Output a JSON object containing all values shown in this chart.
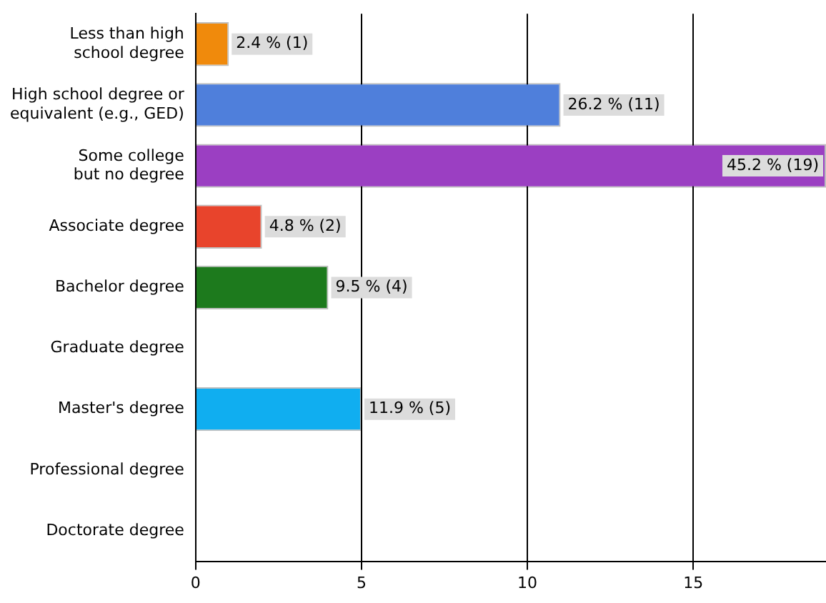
{
  "chart_data": {
    "type": "bar",
    "orientation": "horizontal",
    "categories": [
      "Less than high\nschool degree",
      "High school degree or\nequivalent (e.g., GED)",
      "Some college\nbut no degree",
      "Associate degree",
      "Bachelor degree",
      "Graduate degree",
      "Master's degree",
      "Professional degree",
      "Doctorate degree"
    ],
    "values": [
      1,
      11,
      19,
      2,
      4,
      0,
      5,
      0,
      0
    ],
    "colors": [
      "#f08a0c",
      "#4f7fdb",
      "#9b3fc2",
      "#e8442c",
      "#1d7a1d",
      null,
      "#10aef0",
      null,
      null
    ],
    "value_labels": [
      "2.4 % (1)",
      "26.2 % (11)",
      "45.2 % (19)",
      "4.8 % (2)",
      "9.5 % (4)",
      null,
      "11.9 % (5)",
      null,
      null
    ],
    "xlim": [
      0,
      19
    ],
    "xticks": [
      0,
      5,
      10,
      15
    ],
    "grid": "x",
    "legend": false
  }
}
